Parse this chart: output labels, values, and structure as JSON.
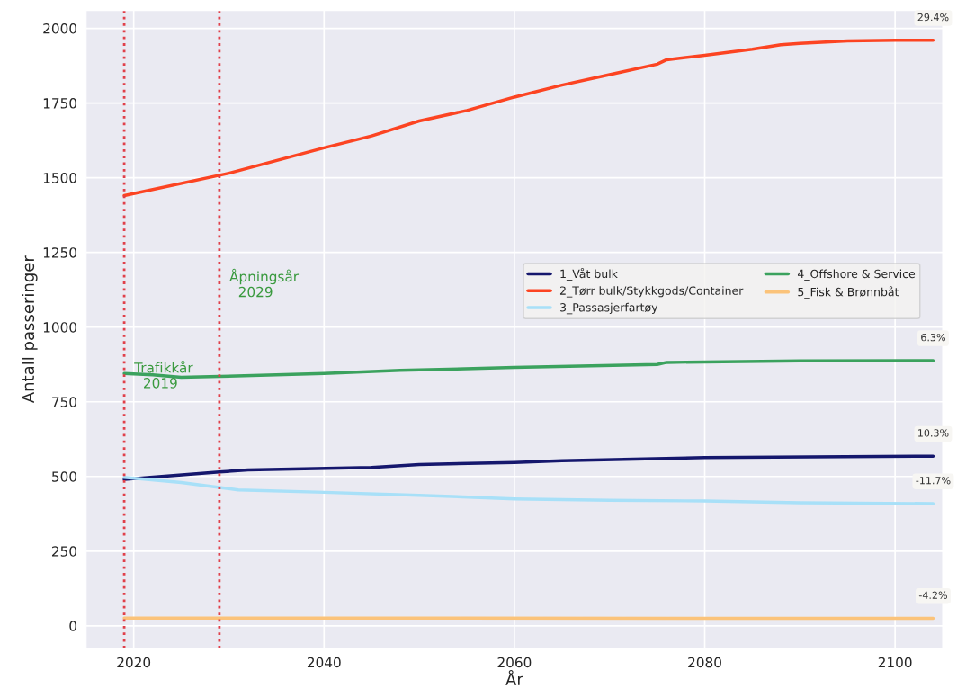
{
  "chart_data": {
    "type": "line",
    "xlabel": "År",
    "ylabel": "Antall passeringer",
    "xlim": [
      2015,
      2105
    ],
    "xticks": [
      2020,
      2040,
      2060,
      2080,
      2100
    ],
    "ylim": [
      -75,
      2060
    ],
    "yticks": [
      0,
      250,
      500,
      750,
      1000,
      1250,
      1500,
      1750,
      2000
    ],
    "grid": true,
    "legend": "right",
    "line_style": "solid",
    "series": [
      {
        "name": "1_Våt bulk",
        "color": "#15176d",
        "x": [
          2019,
          2029,
          2032,
          2045,
          2050,
          2060,
          2065,
          2080,
          2104
        ],
        "values": [
          490,
          515,
          522,
          530,
          540,
          547,
          553,
          563,
          568
        ]
      },
      {
        "name": "2_Tørr bulk/Stykkgods/Container",
        "color": "#fc4422",
        "x": [
          2019,
          2030,
          2040,
          2045,
          2050,
          2055,
          2060,
          2065,
          2070,
          2075,
          2076,
          2080,
          2085,
          2088,
          2090,
          2095,
          2100,
          2104
        ],
        "values": [
          1440,
          1515,
          1600,
          1640,
          1690,
          1725,
          1770,
          1810,
          1845,
          1880,
          1895,
          1910,
          1930,
          1945,
          1950,
          1958,
          1960,
          1960
        ]
      },
      {
        "name": "3_Passasjerfartøy",
        "color": "#a8e0f8",
        "x": [
          2019,
          2025,
          2029,
          2031,
          2040,
          2050,
          2060,
          2070,
          2080,
          2090,
          2104
        ],
        "values": [
          497,
          480,
          463,
          455,
          447,
          437,
          425,
          420,
          418,
          412,
          409
        ]
      },
      {
        "name": "4_Offshore & Service",
        "color": "#3ba25e",
        "x": [
          2019,
          2022,
          2025,
          2029,
          2040,
          2048,
          2060,
          2075,
          2076,
          2090,
          2104
        ],
        "values": [
          845,
          840,
          832,
          835,
          845,
          855,
          865,
          875,
          882,
          887,
          888
        ]
      },
      {
        "name": "5_Fisk & Brønnbåt",
        "color": "#fbc37a",
        "x": [
          2019,
          2104
        ],
        "values": [
          26,
          25
        ]
      }
    ],
    "ref_lines": [
      {
        "axis": "x",
        "value": 2019,
        "color": "#e0404a",
        "line_style": "dotted"
      },
      {
        "axis": "x",
        "value": 2029,
        "color": "#e0404a",
        "line_style": "dotted"
      }
    ],
    "annotations": [
      {
        "text": "Trafikkår\n  2019",
        "x": 2019,
        "y": 845
      },
      {
        "text": "Åpningsår\n  2029",
        "x": 2029,
        "y": 1150
      },
      {
        "text": "29.4%",
        "x": 2104,
        "y": 1960
      },
      {
        "text": "6.3%",
        "x": 2104,
        "y": 888
      },
      {
        "text": "10.3%",
        "x": 2104,
        "y": 568
      },
      {
        "text": "-11.7%",
        "x": 2104,
        "y": 409
      },
      {
        "text": "-4.2%",
        "x": 2104,
        "y": 25
      }
    ]
  }
}
